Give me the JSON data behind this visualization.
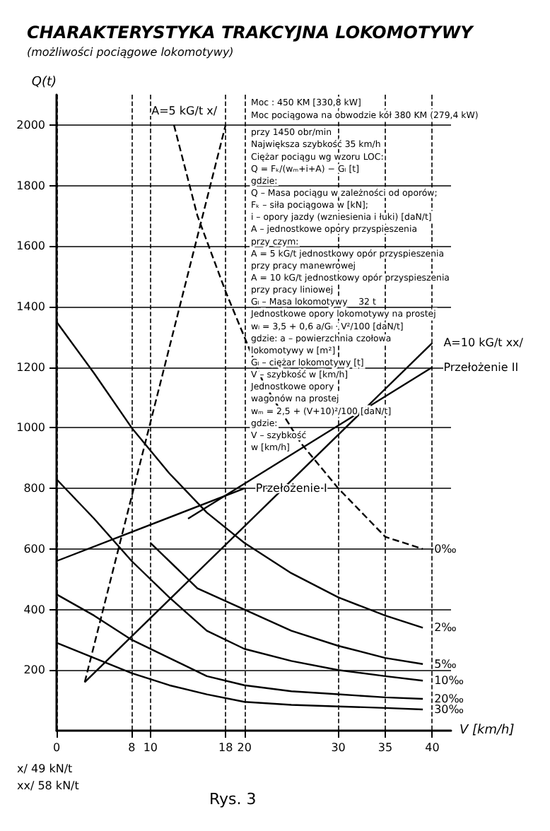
{
  "chart_data": {
    "type": "line",
    "title": "CHARAKTERYSTYKA TRAKCYJNA LOKOMOTYWY",
    "subtitle": "(możliwości pociągowe lokomotywy)",
    "xlabel": "V [km/h]",
    "ylabel": "Q(t)",
    "xlim": [
      0,
      42
    ],
    "ylim": [
      0,
      2100
    ],
    "xticks": [
      0,
      8,
      10,
      18,
      20,
      30,
      35,
      40
    ],
    "yticks": [
      200,
      400,
      600,
      800,
      1000,
      1200,
      1400,
      1600,
      1800,
      2000
    ],
    "grid": true,
    "legend": false,
    "marker": "none",
    "series": [
      {
        "name": "0‰",
        "color": "#000000",
        "line_style": "dashed",
        "x": [
          12.5,
          15,
          18,
          22,
          26,
          30,
          35,
          39
        ],
        "values": [
          2000,
          1700,
          1450,
          1150,
          950,
          800,
          640,
          600
        ]
      },
      {
        "name": "2‰",
        "color": "#000000",
        "line_style": "solid",
        "x": [
          0,
          4,
          8,
          12,
          16,
          20,
          25,
          30,
          35,
          39
        ],
        "values": [
          1350,
          1180,
          1000,
          850,
          720,
          620,
          520,
          440,
          380,
          340
        ]
      },
      {
        "name": "5‰",
        "color": "#000000",
        "line_style": "solid",
        "x": [
          10,
          15,
          20,
          25,
          30,
          35,
          39
        ],
        "values": [
          620,
          470,
          400,
          330,
          280,
          240,
          220
        ]
      },
      {
        "name": "10‰",
        "color": "#000000",
        "line_style": "solid",
        "x": [
          0,
          4,
          8,
          12,
          16,
          20,
          25,
          30,
          35,
          39
        ],
        "values": [
          830,
          700,
          560,
          440,
          330,
          270,
          230,
          200,
          180,
          165
        ]
      },
      {
        "name": "20‰",
        "color": "#000000",
        "line_style": "solid",
        "x": [
          0,
          4,
          8,
          12,
          16,
          20,
          25,
          30,
          35,
          39
        ],
        "values": [
          450,
          380,
          300,
          240,
          180,
          150,
          130,
          120,
          110,
          105
        ]
      },
      {
        "name": "30‰",
        "color": "#000000",
        "line_style": "solid",
        "x": [
          0,
          4,
          8,
          12,
          16,
          20,
          25,
          30,
          35,
          39
        ],
        "values": [
          290,
          240,
          190,
          150,
          120,
          95,
          85,
          80,
          75,
          70
        ]
      },
      {
        "name": "A=5 kG/t x/",
        "color": "#000000",
        "line_style": "dashed",
        "x": [
          3,
          18
        ],
        "values": [
          160,
          2000
        ]
      },
      {
        "name": "A=10 kG/t xx/",
        "color": "#000000",
        "line_style": "solid",
        "x": [
          3,
          40
        ],
        "values": [
          160,
          1280
        ]
      },
      {
        "name": "Przełożenie I",
        "color": "#000000",
        "line_style": "solid",
        "x": [
          0,
          20
        ],
        "values": [
          560,
          800
        ]
      },
      {
        "name": "Przełożenie II",
        "color": "#000000",
        "line_style": "solid",
        "x": [
          14,
          40
        ],
        "values": [
          700,
          1200
        ]
      }
    ],
    "annotations": [
      "Moc : 450 KM [330,8 kW]",
      "Moc pociągowa na obwodzie kół 380 KM (279,4 kW)",
      "przy 1450 obr/min",
      "Największa szybkość 35 km/h",
      "Ciężar pociągu wg wzoru LOC:",
      "Q = Fₖ/(wₘ+i+A) − Gₗ [t]",
      "gdzie:",
      "Q – Masa pociągu w zależności od oporów;",
      "Fₖ – siła pociągowa w [kN];",
      "i – opory jazdy (wzniesienia i łuki) [daN/t]",
      "A – jednostkowe opory przyspieszenia",
      "przy czym:",
      "A = 5 kG/t jednostkowy opór przyspieszenia",
      "przy pracy manewrowej",
      "A = 10 kG/t jednostkowy opór przyspieszenia",
      "przy pracy liniowej",
      "Gₗ – Masa lokomotywy    32 t",
      "Jednostkowe opory lokomotywy na prostej",
      "wₗ = 3,5 + 0,6 a/Gₗ · V²/100 [daN/t]",
      "gdzie: a – powierzchnia czołowa",
      "lokomotywy w [m²]",
      "Gₗ – ciężar lokomotywy [t]",
      "V – szybkość w [km/h]",
      "Jednostkowe opory",
      "wagonów na prostej",
      "wₘ = 2,5 + (V+10)²/100 [daN/t]",
      "gdzie:",
      "V – szybkość",
      "w [km/h]",
      "x/ 49 kN/t",
      "xx/ 58 kN/t",
      "Rys. 3"
    ]
  }
}
